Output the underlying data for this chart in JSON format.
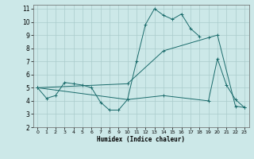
{
  "xlabel": "Humidex (Indice chaleur)",
  "xlim": [
    -0.5,
    23.5
  ],
  "ylim": [
    2,
    11.3
  ],
  "xticks": [
    0,
    1,
    2,
    3,
    4,
    5,
    6,
    7,
    8,
    9,
    10,
    11,
    12,
    13,
    14,
    15,
    16,
    17,
    18,
    19,
    20,
    21,
    22,
    23
  ],
  "yticks": [
    2,
    3,
    4,
    5,
    6,
    7,
    8,
    9,
    10,
    11
  ],
  "bg_color": "#cce8e8",
  "grid_color": "#aacccc",
  "line_color": "#1a6b6b",
  "line1_x": [
    0,
    1,
    2,
    3,
    4,
    5,
    6,
    7,
    8,
    9,
    10,
    11,
    12,
    13,
    14,
    15,
    16,
    17,
    18
  ],
  "line1_y": [
    5.0,
    4.2,
    4.4,
    5.4,
    5.3,
    5.2,
    5.0,
    3.9,
    3.3,
    3.3,
    4.1,
    7.0,
    9.8,
    11.0,
    10.5,
    10.2,
    10.6,
    9.5,
    8.9
  ],
  "line2_x": [
    0,
    10,
    14,
    19,
    20,
    21,
    22,
    23
  ],
  "line2_y": [
    5.0,
    4.1,
    4.4,
    4.0,
    7.2,
    5.2,
    4.1,
    3.5
  ],
  "line3_x": [
    0,
    10,
    14,
    19,
    20,
    22,
    23
  ],
  "line3_y": [
    5.0,
    5.3,
    7.8,
    8.8,
    9.0,
    3.6,
    3.5
  ]
}
